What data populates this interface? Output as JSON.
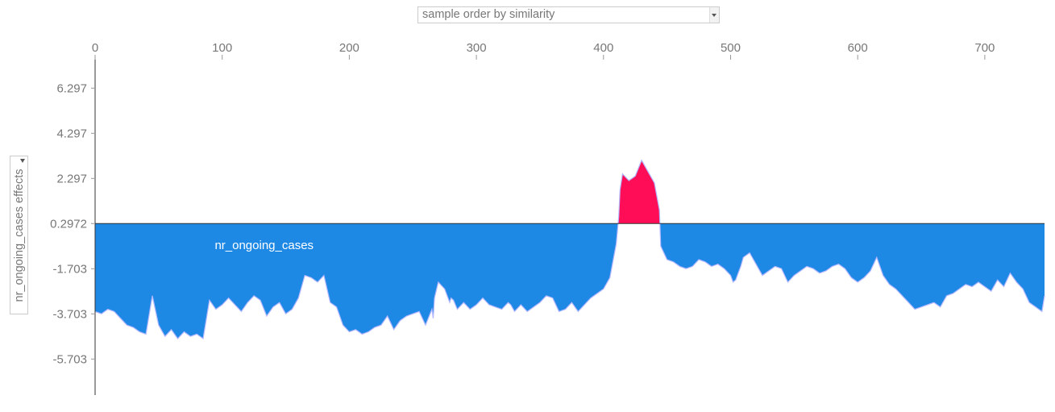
{
  "controls": {
    "order_select": {
      "value": "sample order by similarity"
    },
    "effect_select": {
      "value": "nr_ongoing_cases effects"
    }
  },
  "colors": {
    "positive": "#ff0d57",
    "negative": "#1e88e5",
    "outline": "#b3b8ff",
    "axis": "#333333",
    "tick_text": "#777777"
  },
  "chart_data": {
    "type": "area",
    "title": "",
    "xlabel": "",
    "ylabel": "nr_ongoing_cases effects",
    "x_ticks": [
      0,
      100,
      200,
      300,
      400,
      500,
      600,
      700
    ],
    "y_ticks": [
      6.297,
      4.297,
      2.297,
      0.2972,
      -1.703,
      -3.703,
      -5.703
    ],
    "y_tick_labels": [
      "6.297",
      "4.297",
      "2.297",
      "0.2972",
      "-1.703",
      "-3.703",
      "-5.703"
    ],
    "xlim": [
      0,
      747
    ],
    "ylim": [
      -7.3,
      7.7
    ],
    "base_value": 0.2972,
    "annotations": [
      {
        "text": "nr_ongoing_cases",
        "x": 133,
        "y": -0.65
      },
      {
        "text": "nr_ongoing_cases",
        "x": 652,
        "y": 0.78
      }
    ],
    "series": [
      {
        "x": [
          0,
          5,
          10,
          15,
          20,
          25,
          30,
          35,
          40,
          45,
          50,
          55,
          60,
          65,
          70,
          75,
          80,
          85,
          90,
          95,
          100,
          105,
          110,
          115,
          120,
          125,
          130,
          135,
          140,
          145,
          150,
          155,
          160,
          165,
          170,
          175,
          180,
          185,
          190,
          195,
          200,
          205,
          210,
          215,
          220,
          225,
          230,
          235,
          240,
          245,
          250,
          255,
          260,
          265,
          266,
          267,
          270,
          275,
          279,
          280,
          282,
          285,
          290,
          295,
          300,
          305,
          310,
          315,
          320,
          325,
          327,
          330,
          335,
          340,
          345,
          350,
          355,
          360,
          365,
          370,
          375,
          380,
          385,
          390,
          395,
          400,
          405,
          410,
          412,
          413,
          415,
          420,
          425,
          430,
          435,
          440,
          444,
          445,
          450,
          455,
          460,
          465,
          470,
          475,
          480,
          485,
          490,
          495,
          500,
          502,
          504,
          506,
          508,
          510,
          515,
          520,
          525,
          530,
          535,
          540,
          545,
          550,
          555,
          560,
          565,
          570,
          575,
          580,
          585,
          590,
          595,
          600,
          605,
          610,
          615,
          620,
          625,
          630,
          635,
          640,
          645,
          650,
          655,
          660,
          665,
          670,
          675,
          680,
          685,
          690,
          695,
          700,
          705,
          710,
          715,
          720,
          725,
          730,
          735,
          740,
          745,
          747
        ],
        "y": [
          -3.6,
          -3.7,
          -3.5,
          -3.6,
          -3.9,
          -4.2,
          -4.3,
          -4.5,
          -4.6,
          -2.9,
          -4.2,
          -4.7,
          -4.4,
          -4.8,
          -4.5,
          -4.7,
          -4.6,
          -4.8,
          -3.1,
          -3.5,
          -3.3,
          -3.0,
          -3.3,
          -3.6,
          -3.2,
          -2.9,
          -3.1,
          -3.8,
          -3.4,
          -3.2,
          -3.7,
          -3.5,
          -3.0,
          -2.0,
          -2.1,
          -2.3,
          -2.0,
          -3.2,
          -3.4,
          -4.2,
          -4.5,
          -4.4,
          -4.6,
          -4.5,
          -4.3,
          -4.2,
          -3.8,
          -4.4,
          -4.0,
          -3.8,
          -3.7,
          -3.6,
          -4.2,
          -3.5,
          -3.9,
          -3.0,
          -2.3,
          -2.6,
          -3.2,
          -3.0,
          -3.1,
          -3.5,
          -3.2,
          -3.5,
          -3.3,
          -3.0,
          -3.3,
          -3.4,
          -3.5,
          -3.2,
          -3.3,
          -3.6,
          -3.3,
          -3.6,
          -3.4,
          -3.2,
          -2.9,
          -3.0,
          -3.6,
          -3.5,
          -3.2,
          -3.6,
          -3.3,
          -3.0,
          -2.8,
          -2.6,
          -2.1,
          -0.6,
          0.6,
          1.8,
          2.5,
          2.2,
          2.4,
          3.1,
          2.6,
          2.1,
          0.9,
          -0.7,
          -1.3,
          -1.4,
          -1.6,
          -1.7,
          -1.6,
          -1.3,
          -1.4,
          -1.6,
          -1.5,
          -1.7,
          -2.0,
          -2.3,
          -2.2,
          -1.9,
          -1.6,
          -1.2,
          -1.0,
          -1.5,
          -2.0,
          -1.8,
          -1.6,
          -1.7,
          -2.3,
          -2.0,
          -1.8,
          -1.6,
          -1.7,
          -1.9,
          -1.8,
          -1.6,
          -1.5,
          -1.7,
          -2.1,
          -2.3,
          -2.1,
          -1.8,
          -1.2,
          -2.0,
          -2.4,
          -2.6,
          -2.9,
          -3.2,
          -3.5,
          -3.4,
          -3.3,
          -3.2,
          -3.4,
          -2.9,
          -2.8,
          -2.6,
          -2.4,
          -2.5,
          -2.3,
          -2.5,
          -2.7,
          -2.2,
          -2.5,
          -1.9,
          -2.3,
          -2.6,
          -3.2,
          -3.4,
          -3.6,
          -2.9
        ],
        "name": ""
      }
    ]
  }
}
